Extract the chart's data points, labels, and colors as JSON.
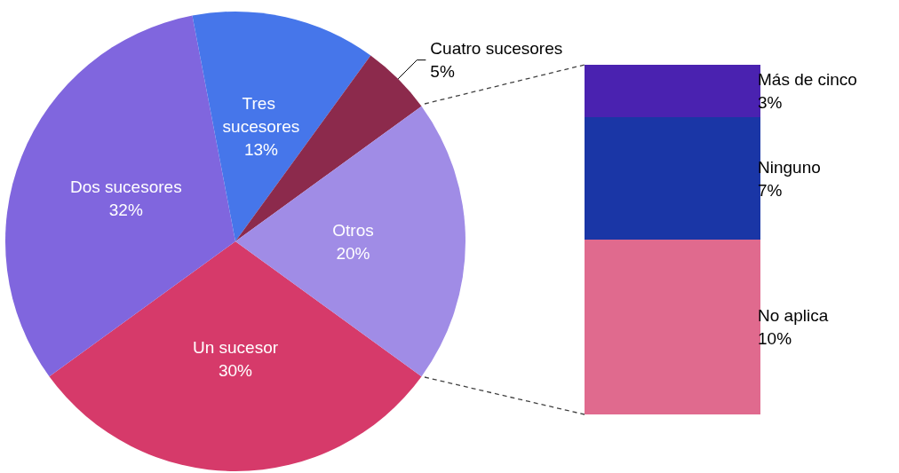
{
  "chart_data": [
    {
      "type": "pie",
      "categories": [
        "Un sucesor",
        "Dos sucesores",
        "Tres sucesores",
        "Cuatro sucesores",
        "Otros"
      ],
      "values": [
        30,
        32,
        13,
        5,
        20
      ],
      "value_labels": [
        "30%",
        "32%",
        "13%",
        "5%",
        "20%"
      ],
      "colors": [
        "#d63a6a",
        "#8066de",
        "#4676ea",
        "#8c2a4c",
        "#a08ce6"
      ]
    },
    {
      "type": "bar",
      "stacked": true,
      "categories": [
        null
      ],
      "series": [
        {
          "name": "No aplica",
          "color": "#e06a8e",
          "values": [
            10
          ],
          "value_labels": [
            "10%"
          ]
        },
        {
          "name": "Ninguno",
          "color": "#1a36a6",
          "values": [
            7
          ],
          "value_labels": [
            "7%"
          ]
        },
        {
          "name": "Más de cinco",
          "color": "#4a22b0",
          "values": [
            3
          ],
          "value_labels": [
            "3%"
          ]
        }
      ]
    }
  ]
}
